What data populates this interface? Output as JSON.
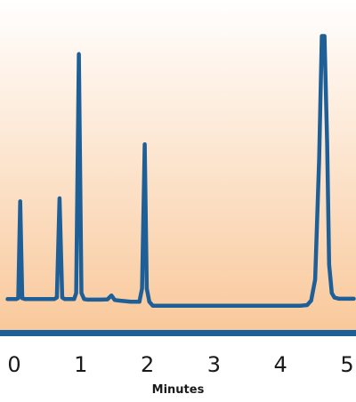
{
  "chart_data": {
    "type": "line",
    "title": "",
    "xlabel": "Minutes",
    "ylabel": "",
    "xlim": [
      0,
      5
    ],
    "ylim": [
      0,
      100
    ],
    "xticks": [
      {
        "value": 0,
        "label": "0"
      },
      {
        "value": 1,
        "label": "1"
      },
      {
        "value": 2,
        "label": "2"
      },
      {
        "value": 3,
        "label": "3"
      },
      {
        "value": 4,
        "label": "4"
      },
      {
        "value": 5,
        "label": "5"
      }
    ],
    "grid": false,
    "colors": {
      "line": "#1f5f98",
      "axis": "#1f5f98",
      "gradient_top": "#ffffff",
      "gradient_bottom": "#f9c89a"
    },
    "series": [
      {
        "x": [
          -0.1,
          0.03,
          0.06,
          0.09,
          0.12,
          0.16,
          0.6,
          0.64,
          0.68,
          0.72,
          0.76,
          0.9,
          0.93,
          0.97,
          1.01,
          1.05,
          1.1,
          1.18,
          1.3,
          1.4,
          1.46,
          1.51,
          1.58,
          1.75,
          1.88,
          1.92,
          1.96,
          1.99,
          2.03,
          2.08,
          2.12,
          2.3,
          3.0,
          4.0,
          4.3,
          4.4,
          4.46,
          4.52,
          4.58,
          4.62,
          4.66,
          4.7,
          4.73,
          4.77,
          4.81,
          4.88,
          5.1
        ],
        "y": [
          8.5,
          8.5,
          8.8,
          41,
          8.8,
          8.5,
          8.5,
          9.0,
          42,
          9.0,
          8.5,
          8.5,
          10.5,
          90,
          10.5,
          8.5,
          8.3,
          8.3,
          8.3,
          8.4,
          9.7,
          8.2,
          8.0,
          7.6,
          7.6,
          12,
          60,
          12,
          7.6,
          6.3,
          6.3,
          6.3,
          6.3,
          6.3,
          6.3,
          6.5,
          8.0,
          15,
          55,
          96,
          96,
          60,
          20,
          10.5,
          9.0,
          8.6,
          8.6
        ]
      }
    ]
  }
}
